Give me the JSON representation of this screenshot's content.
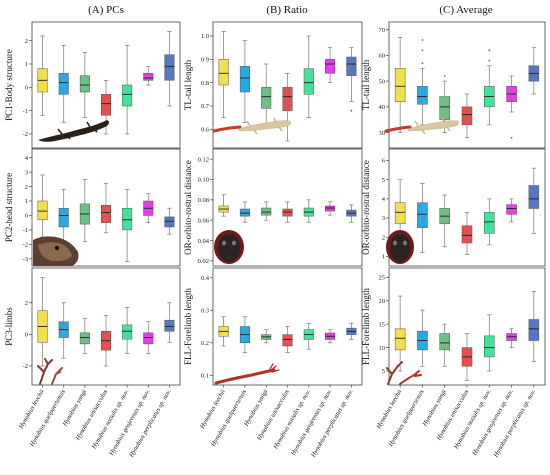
{
  "column_titles": [
    "(A) PCs",
    "(B) Ratio",
    "(C) Average"
  ],
  "colors": [
    "#f3df4a",
    "#29a8e1",
    "#6dbf85",
    "#e45050",
    "#41e29a",
    "#e43ee8",
    "#5877c2"
  ],
  "chart_data": [
    {
      "type": "box",
      "ylabel": "PC1-Body structure",
      "ylim": [
        -2.6,
        2.8
      ],
      "yticks": [
        "2",
        "1",
        "0",
        "-1",
        "-2"
      ],
      "boxes": [
        {
          "min": -1.2,
          "q1": -0.2,
          "median": 0.3,
          "q3": 0.8,
          "max": 2.2,
          "outliers": []
        },
        {
          "min": -1.5,
          "q1": -0.3,
          "median": 0.2,
          "q3": 0.6,
          "max": 1.8,
          "outliers": []
        },
        {
          "min": -1.3,
          "q1": -0.2,
          "median": 0.1,
          "q3": 0.5,
          "max": 1.5,
          "outliers": []
        },
        {
          "min": -2.0,
          "q1": -1.2,
          "median": -0.7,
          "q3": -0.3,
          "max": 0.3,
          "outliers": []
        },
        {
          "min": -2.0,
          "q1": -0.8,
          "median": -0.3,
          "q3": 0.1,
          "max": 1.8,
          "outliers": []
        },
        {
          "min": 0.1,
          "q1": 0.3,
          "median": 0.4,
          "q3": 0.6,
          "max": 0.9,
          "outliers": []
        },
        {
          "min": -0.8,
          "q1": 0.3,
          "median": 0.9,
          "q3": 1.4,
          "max": 2.4,
          "outliers": []
        }
      ]
    },
    {
      "type": "box",
      "ylabel": "TL-tail length",
      "ylim": [
        0.52,
        1.06
      ],
      "yticks": [
        "1.0",
        "0.9",
        "0.8",
        "0.7",
        "0.6"
      ],
      "boxes": [
        {
          "min": 0.65,
          "q1": 0.79,
          "median": 0.84,
          "q3": 0.9,
          "max": 1.02,
          "outliers": []
        },
        {
          "min": 0.63,
          "q1": 0.76,
          "median": 0.82,
          "q3": 0.87,
          "max": 0.98,
          "outliers": []
        },
        {
          "min": 0.62,
          "q1": 0.69,
          "median": 0.74,
          "q3": 0.78,
          "max": 0.88,
          "outliers": []
        },
        {
          "min": 0.55,
          "q1": 0.68,
          "median": 0.74,
          "q3": 0.78,
          "max": 0.84,
          "outliers": []
        },
        {
          "min": 0.65,
          "q1": 0.75,
          "median": 0.8,
          "q3": 0.86,
          "max": 1.0,
          "outliers": []
        },
        {
          "min": 0.8,
          "q1": 0.84,
          "median": 0.88,
          "q3": 0.9,
          "max": 0.95,
          "outliers": []
        },
        {
          "min": 0.72,
          "q1": 0.83,
          "median": 0.88,
          "q3": 0.91,
          "max": 0.95,
          "outliers": [
            0.68
          ]
        }
      ]
    },
    {
      "type": "box",
      "ylabel": "TL-tail length",
      "ylim": [
        24,
        73
      ],
      "yticks": [
        "70",
        "60",
        "50",
        "40",
        "30"
      ],
      "boxes": [
        {
          "min": 30,
          "q1": 42,
          "median": 48,
          "q3": 55,
          "max": 67,
          "outliers": []
        },
        {
          "min": 33,
          "q1": 41,
          "median": 44,
          "q3": 48,
          "max": 55,
          "outliers": [
            57,
            62,
            66
          ]
        },
        {
          "min": 30,
          "q1": 35,
          "median": 40,
          "q3": 44,
          "max": 50,
          "outliers": [
            52
          ]
        },
        {
          "min": 28,
          "q1": 33,
          "median": 37,
          "q3": 40,
          "max": 45,
          "outliers": []
        },
        {
          "min": 33,
          "q1": 40,
          "median": 44,
          "q3": 48,
          "max": 56,
          "outliers": [
            58,
            62
          ]
        },
        {
          "min": 38,
          "q1": 42,
          "median": 45,
          "q3": 48,
          "max": 52,
          "outliers": [
            28
          ]
        },
        {
          "min": 45,
          "q1": 50,
          "median": 53,
          "q3": 56,
          "max": 63,
          "outliers": []
        }
      ]
    },
    {
      "type": "box",
      "ylabel": "PC2-head structure",
      "ylim": [
        -3.5,
        4.6
      ],
      "yticks": [
        "4",
        "3",
        "2",
        "1",
        "0",
        "-1",
        "-2",
        "-3"
      ],
      "boxes": [
        {
          "min": -1.5,
          "q1": -0.3,
          "median": 0.3,
          "q3": 1.0,
          "max": 2.8,
          "outliers": []
        },
        {
          "min": -2.0,
          "q1": -0.8,
          "median": 0.0,
          "q3": 0.5,
          "max": 1.8,
          "outliers": []
        },
        {
          "min": -1.8,
          "q1": -0.6,
          "median": 0.1,
          "q3": 0.8,
          "max": 2.5,
          "outliers": []
        },
        {
          "min": -1.2,
          "q1": -0.5,
          "median": 0.2,
          "q3": 0.7,
          "max": 2.2,
          "outliers": []
        },
        {
          "min": -3.2,
          "q1": -1.0,
          "median": -0.3,
          "q3": 0.5,
          "max": 1.8,
          "outliers": []
        },
        {
          "min": -0.5,
          "q1": 0.0,
          "median": 0.5,
          "q3": 1.0,
          "max": 1.5,
          "outliers": []
        },
        {
          "min": -1.3,
          "q1": -0.8,
          "median": -0.4,
          "q3": -0.1,
          "max": 0.5,
          "outliers": []
        }
      ]
    },
    {
      "type": "box",
      "ylabel": "OR-orbito-rostral distance",
      "ylim": [
        0.015,
        0.13
      ],
      "yticks": [
        "0.12",
        "0.10",
        "0.08",
        "0.06",
        "0.04",
        "0.02"
      ],
      "boxes": [
        {
          "min": 0.064,
          "q1": 0.068,
          "median": 0.071,
          "q3": 0.074,
          "max": 0.085,
          "outliers": []
        },
        {
          "min": 0.058,
          "q1": 0.064,
          "median": 0.067,
          "q3": 0.071,
          "max": 0.078,
          "outliers": []
        },
        {
          "min": 0.06,
          "q1": 0.065,
          "median": 0.068,
          "q3": 0.072,
          "max": 0.078,
          "outliers": []
        },
        {
          "min": 0.058,
          "q1": 0.064,
          "median": 0.068,
          "q3": 0.071,
          "max": 0.078,
          "outliers": []
        },
        {
          "min": 0.058,
          "q1": 0.064,
          "median": 0.068,
          "q3": 0.072,
          "max": 0.08,
          "outliers": []
        },
        {
          "min": 0.065,
          "q1": 0.069,
          "median": 0.072,
          "q3": 0.074,
          "max": 0.078,
          "outliers": []
        },
        {
          "min": 0.058,
          "q1": 0.064,
          "median": 0.067,
          "q3": 0.07,
          "max": 0.075,
          "outliers": []
        }
      ]
    },
    {
      "type": "box",
      "ylabel": "OR-orbito-rostral distance",
      "ylim": [
        0.5,
        6.6
      ],
      "yticks": [
        "6",
        "5",
        "4",
        "3",
        "2",
        "1"
      ],
      "boxes": [
        {
          "min": 1.5,
          "q1": 2.7,
          "median": 3.3,
          "q3": 3.8,
          "max": 5.0,
          "outliers": []
        },
        {
          "min": 1.2,
          "q1": 2.5,
          "median": 3.2,
          "q3": 3.8,
          "max": 4.8,
          "outliers": []
        },
        {
          "min": 1.5,
          "q1": 2.7,
          "median": 3.1,
          "q3": 3.5,
          "max": 4.2,
          "outliers": []
        },
        {
          "min": 1.1,
          "q1": 1.7,
          "median": 2.1,
          "q3": 2.6,
          "max": 3.3,
          "outliers": []
        },
        {
          "min": 1.6,
          "q1": 2.2,
          "median": 2.8,
          "q3": 3.3,
          "max": 4.0,
          "outliers": []
        },
        {
          "min": 2.8,
          "q1": 3.2,
          "median": 3.5,
          "q3": 3.7,
          "max": 4.0,
          "outliers": []
        },
        {
          "min": 2.2,
          "q1": 3.5,
          "median": 4.0,
          "q3": 4.7,
          "max": 5.6,
          "outliers": []
        }
      ]
    },
    {
      "type": "box",
      "ylabel": "PC3-limbs",
      "ylim": [
        -3.2,
        4.2
      ],
      "yticks": [
        "2",
        "0",
        "-2"
      ],
      "categories": [
        "Hynobius leechii",
        "Hynobius quelpaertensis",
        "Hynobius yangi",
        "Hynobius unisacculus",
        "Hynobius notialis sp. nov.",
        "Hynobius geojeensis sp. nov.",
        "Hynobius perplicatus sp. nov."
      ],
      "boxes": [
        {
          "min": -2.0,
          "q1": -0.5,
          "median": 0.5,
          "q3": 1.5,
          "max": 3.6,
          "outliers": []
        },
        {
          "min": -1.5,
          "q1": -0.2,
          "median": 0.3,
          "q3": 0.8,
          "max": 2.0,
          "outliers": []
        },
        {
          "min": -1.2,
          "q1": -0.6,
          "median": -0.2,
          "q3": 0.1,
          "max": 1.0,
          "outliers": []
        },
        {
          "min": -2.0,
          "q1": -1.0,
          "median": -0.4,
          "q3": 0.2,
          "max": 1.2,
          "outliers": []
        },
        {
          "min": -1.2,
          "q1": -0.3,
          "median": 0.2,
          "q3": 0.6,
          "max": 1.7,
          "outliers": []
        },
        {
          "min": -1.2,
          "q1": -0.6,
          "median": -0.2,
          "q3": 0.1,
          "max": 0.8,
          "outliers": []
        },
        {
          "min": -0.5,
          "q1": 0.2,
          "median": 0.5,
          "q3": 0.9,
          "max": 2.0,
          "outliers": []
        }
      ]
    },
    {
      "type": "box",
      "ylabel": "FLL-Forelimb length",
      "ylim": [
        0.07,
        0.43
      ],
      "yticks": [
        "0.4",
        "0.3",
        "0.2",
        "0.1"
      ],
      "categories": [
        "Hynobius leechii",
        "Hynobius quelpaertensis",
        "Hynobius yangi",
        "Hynobius unisacculus",
        "Hynobius notialis sp. nov.",
        "Hynobius geojeensis sp. nov.",
        "Hynobius perplicatus sp. nov."
      ],
      "boxes": [
        {
          "min": 0.19,
          "q1": 0.22,
          "median": 0.235,
          "q3": 0.25,
          "max": 0.28,
          "outliers": []
        },
        {
          "min": 0.17,
          "q1": 0.2,
          "median": 0.225,
          "q3": 0.25,
          "max": 0.28,
          "outliers": []
        },
        {
          "min": 0.2,
          "q1": 0.21,
          "median": 0.218,
          "q3": 0.225,
          "max": 0.24,
          "outliers": []
        },
        {
          "min": 0.17,
          "q1": 0.19,
          "median": 0.21,
          "q3": 0.225,
          "max": 0.25,
          "outliers": []
        },
        {
          "min": 0.18,
          "q1": 0.21,
          "median": 0.225,
          "q3": 0.24,
          "max": 0.26,
          "outliers": []
        },
        {
          "min": 0.2,
          "q1": 0.21,
          "median": 0.22,
          "q3": 0.23,
          "max": 0.24,
          "outliers": []
        },
        {
          "min": 0.21,
          "q1": 0.225,
          "median": 0.235,
          "q3": 0.245,
          "max": 0.26,
          "outliers": []
        }
      ]
    },
    {
      "type": "box",
      "ylabel": "FLL-Forelimb length",
      "ylim": [
        2,
        27
      ],
      "yticks": [
        "25",
        "20",
        "15",
        "10",
        "5"
      ],
      "categories": [
        "Hynobius leechii",
        "Hynobius quelpaertensis",
        "Hynobius yangi",
        "Hynobius unisacculus",
        "Hynobius notialis sp. nov.",
        "Hynobius geojeensis sp. nov.",
        "Hynobius perplicatus sp. nov."
      ],
      "boxes": [
        {
          "min": 5,
          "q1": 9.5,
          "median": 12,
          "q3": 14,
          "max": 21,
          "outliers": []
        },
        {
          "min": 6,
          "q1": 9.5,
          "median": 11.5,
          "q3": 13.5,
          "max": 18,
          "outliers": []
        },
        {
          "min": 6,
          "q1": 9.5,
          "median": 11,
          "q3": 13,
          "max": 15,
          "outliers": []
        },
        {
          "min": 3,
          "q1": 6,
          "median": 8,
          "q3": 10,
          "max": 13,
          "outliers": []
        },
        {
          "min": 5,
          "q1": 8,
          "median": 10,
          "q3": 12.5,
          "max": 17,
          "outliers": []
        },
        {
          "min": 10,
          "q1": 11.5,
          "median": 12.3,
          "q3": 13,
          "max": 14,
          "outliers": []
        },
        {
          "min": 7,
          "q1": 11.5,
          "median": 14,
          "q3": 16,
          "max": 22,
          "outliers": []
        }
      ]
    }
  ]
}
